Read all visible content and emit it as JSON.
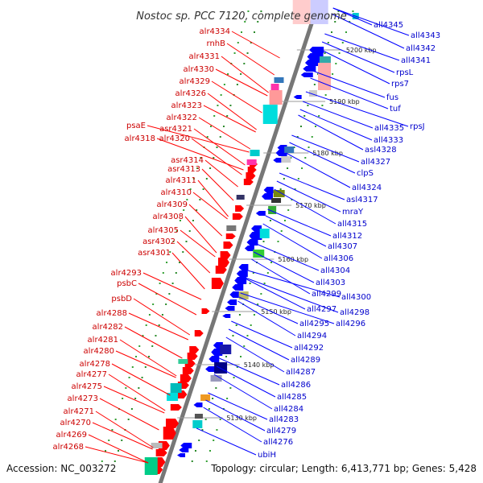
{
  "title": "Nostoc sp. PCC 7120, complete genome",
  "footer": {
    "accession": "Accession: NC_003272",
    "topology": "Topology: circular; Length: 6,413,771 bp; Genes: 5,428"
  },
  "positions": [
    "5200 kbp",
    "5190 kbp",
    "5180 kbp",
    "5170 kbp",
    "5160 kbp",
    "5150 kbp",
    "5140 kbp",
    "5130 kbp"
  ],
  "left_genes": [
    "alr4334",
    "rnhB",
    "alr4331",
    "alr4330",
    "alr4329",
    "alr4326",
    "alr4323",
    "alr4322",
    "asr4321",
    "psaE",
    "alr4318",
    "alr4320",
    "asr4314",
    "asr4313",
    "alr4311",
    "alr4310",
    "alr4309",
    "alr4308",
    "alr4305",
    "asr4302",
    "asr4301",
    "alr4293",
    "psbC",
    "psbD",
    "alr4288",
    "alr4282",
    "alr4281",
    "alr4280",
    "alr4278",
    "alr4277",
    "alr4275",
    "alr4273",
    "alr4271",
    "alr4270",
    "alr4269",
    "alr4268"
  ],
  "right_genes": [
    "all4345",
    "all4343",
    "all4342",
    "all4341",
    "rpsL",
    "rps7",
    "fus",
    "tuf",
    "rpsJ",
    "all4335",
    "all4333",
    "asl4328",
    "all4327",
    "clpS",
    "all4324",
    "asl4317",
    "mraY",
    "all4315",
    "all4312",
    "all4307",
    "all4306",
    "all4304",
    "all4303",
    "all4299",
    "all4300",
    "all4297",
    "all4298",
    "all4295",
    "all4296",
    "all4294",
    "all4292",
    "all4289",
    "all4287",
    "all4286",
    "all4285",
    "all4284",
    "all4283",
    "all4279",
    "all4276",
    "ubiH"
  ],
  "colors": {
    "forward": "#ff0000",
    "reverse": "#0000ff",
    "backbone": "#777777"
  }
}
